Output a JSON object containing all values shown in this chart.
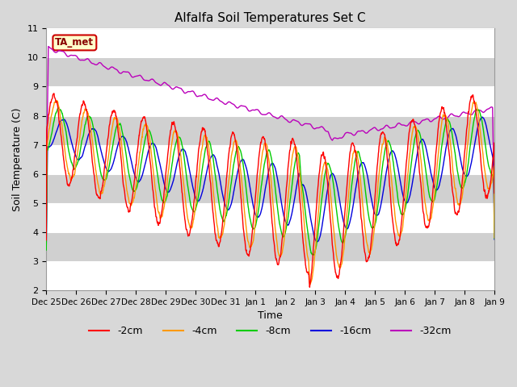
{
  "title": "Alfalfa Soil Temperatures Set C",
  "xlabel": "Time",
  "ylabel": "Soil Temperature (C)",
  "ylim": [
    2.0,
    11.0
  ],
  "yticks": [
    2.0,
    3.0,
    4.0,
    5.0,
    6.0,
    7.0,
    8.0,
    9.0,
    10.0,
    11.0
  ],
  "colors": {
    "-2cm": "#ff0000",
    "-4cm": "#ff9900",
    "-8cm": "#00cc00",
    "-16cm": "#0000dd",
    "-32cm": "#bb00bb"
  },
  "fig_bg": "#d8d8d8",
  "ax_bg": "#e8e8e8",
  "band_colors": [
    "#ffffff",
    "#d0d0d0"
  ],
  "ta_met_label": "TA_met",
  "ta_met_box_color": "#ffffcc",
  "ta_met_border_color": "#cc0000",
  "ta_met_text_color": "#880000",
  "tick_labels": [
    "Dec 25",
    "Dec 26",
    "Dec 27",
    "Dec 28",
    "Dec 29",
    "Dec 30",
    "Dec 31",
    "Jan 1",
    "Jan 2",
    "Jan 3",
    "Jan 4",
    "Jan 5",
    "Jan 6",
    "Jan 7",
    "Jan 8",
    "Jan 9"
  ],
  "tick_positions": [
    0,
    1,
    2,
    3,
    4,
    5,
    6,
    7,
    8,
    9,
    10,
    11,
    12,
    13,
    14,
    15
  ]
}
